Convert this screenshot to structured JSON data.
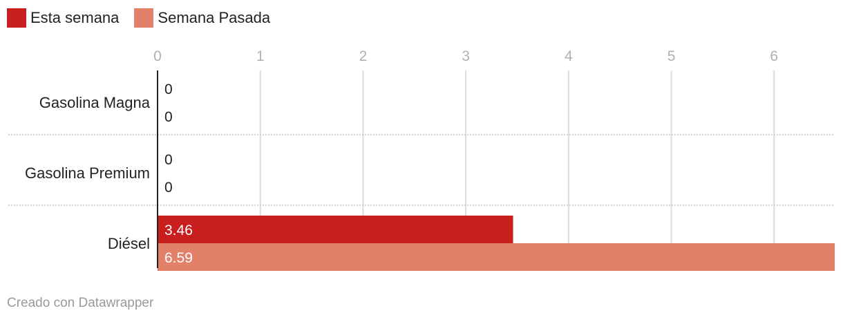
{
  "legend": [
    {
      "label": "Esta semana",
      "color": "#c81e1e"
    },
    {
      "label": "Semana Pasada",
      "color": "#e3806a"
    }
  ],
  "chart_data": {
    "type": "bar",
    "orientation": "horizontal",
    "categories": [
      "Gasolina Magna",
      "Gasolina Premium",
      "Diésel"
    ],
    "series": [
      {
        "name": "Esta semana",
        "values": [
          0,
          0,
          3.46
        ],
        "labels": [
          "0",
          "0",
          "3.46"
        ],
        "color": "#c81e1e"
      },
      {
        "name": "Semana Pasada",
        "values": [
          0,
          0,
          6.59
        ],
        "labels": [
          "0",
          "0",
          "6.59"
        ],
        "color": "#e3806a"
      }
    ],
    "xticks": [
      "0",
      "1",
      "2",
      "3",
      "4",
      "5",
      "6"
    ],
    "xlim": [
      0,
      6.59
    ],
    "grid": true,
    "legend_position": "top-left",
    "title": "",
    "xlabel": "",
    "ylabel": ""
  },
  "footer": "Creado con Datawrapper"
}
